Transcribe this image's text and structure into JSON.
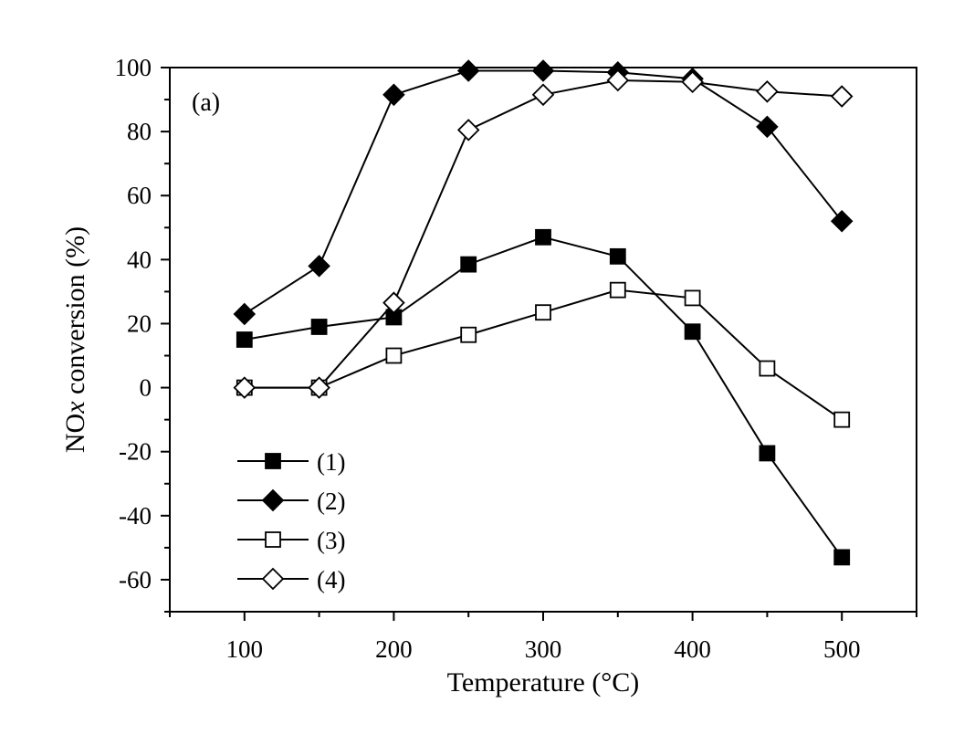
{
  "chart_data": {
    "type": "line",
    "panel_label": "(a)",
    "xlabel": "Temperature (°C)",
    "ylabel_main": "NO",
    "ylabel_sub": "x",
    "ylabel_rest": " conversion (%)",
    "xlim": [
      50,
      550
    ],
    "ylim": [
      -70,
      100
    ],
    "xticks": [
      100,
      200,
      300,
      400,
      500
    ],
    "yticks": [
      -60,
      -40,
      -20,
      0,
      20,
      40,
      60,
      80,
      100
    ],
    "legend_position": "bottom-left",
    "series": [
      {
        "name": "(1)",
        "marker": "square",
        "filled": true,
        "x": [
          100,
          150,
          200,
          250,
          300,
          350,
          400,
          450,
          500
        ],
        "y": [
          15,
          19,
          22,
          38.5,
          47,
          41,
          17.5,
          -20.5,
          -53
        ]
      },
      {
        "name": "(2)",
        "marker": "diamond",
        "filled": true,
        "x": [
          100,
          150,
          200,
          250,
          300,
          350,
          400,
          450,
          500
        ],
        "y": [
          23,
          38,
          91.5,
          99,
          99,
          98.5,
          96.5,
          81.5,
          52
        ]
      },
      {
        "name": "(3)",
        "marker": "square",
        "filled": false,
        "x": [
          100,
          150,
          200,
          250,
          300,
          350,
          400,
          450,
          500
        ],
        "y": [
          0,
          0,
          10,
          16.5,
          23.5,
          30.5,
          28,
          6,
          -10
        ]
      },
      {
        "name": "(4)",
        "marker": "diamond",
        "filled": false,
        "x": [
          100,
          150,
          200,
          250,
          300,
          350,
          400,
          450,
          500
        ],
        "y": [
          0,
          0,
          26.5,
          80.5,
          91.5,
          96,
          95.5,
          92.5,
          91
        ]
      }
    ]
  }
}
